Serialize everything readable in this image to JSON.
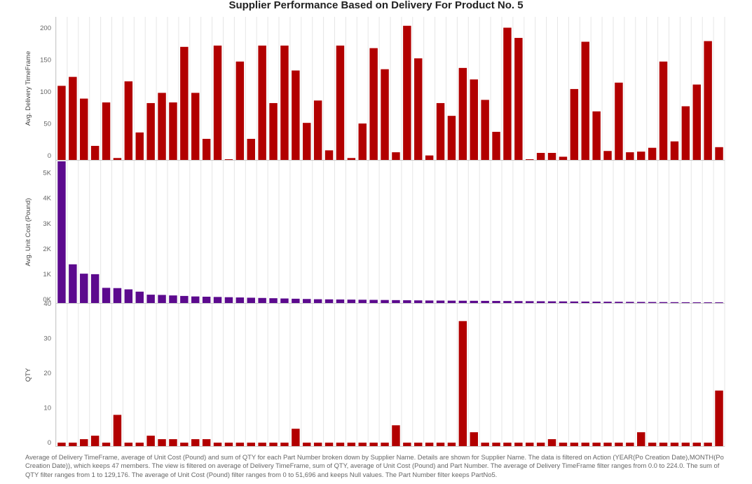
{
  "chart_data": {
    "type": "bar",
    "title": "Supplier Performance Based on Delivery For Product No. 5",
    "xlabel": "",
    "colors": {
      "delivery": "#b20000",
      "cost": "#5c0a8e",
      "qty": "#b20000",
      "gridline": "#e6e6e6"
    },
    "panels": [
      {
        "name": "delivery",
        "ylabel": "Avg. Delivery TimeFrame",
        "ylim": [
          0,
          224
        ],
        "ticks": [
          0,
          50,
          100,
          150,
          200
        ],
        "tick_labels": [
          "0",
          "50",
          "100",
          "150",
          "200"
        ]
      },
      {
        "name": "cost",
        "ylabel": "Avg. Unit Cost (Pound)",
        "ylim": [
          0,
          5600
        ],
        "ticks": [
          0,
          1000,
          2000,
          3000,
          4000,
          5000
        ],
        "tick_labels": [
          "0K",
          "1K",
          "2K",
          "3K",
          "4K",
          "5K"
        ]
      },
      {
        "name": "qty",
        "ylabel": "QTY",
        "ylim": [
          0,
          41
        ],
        "ticks": [
          0,
          10,
          20,
          30,
          40
        ],
        "tick_labels": [
          "0",
          "10",
          "20",
          "30",
          "40"
        ]
      }
    ],
    "series": [
      {
        "name": "Avg. Delivery TimeFrame",
        "values": [
          116,
          130,
          96,
          22,
          90,
          3,
          123,
          43,
          89,
          105,
          90,
          177,
          105,
          33,
          179,
          1,
          154,
          33,
          179,
          89,
          179,
          140,
          58,
          93,
          15,
          179,
          3,
          57,
          175,
          142,
          12,
          210,
          159,
          7,
          89,
          69,
          144,
          126,
          94,
          44,
          207,
          191,
          1,
          11,
          11,
          5,
          111,
          185,
          76,
          14,
          121,
          12,
          13,
          19,
          154,
          29,
          84,
          118,
          186,
          20
        ]
      },
      {
        "name": "Avg. Unit Cost (Pound)",
        "values": [
          5600,
          1530,
          1160,
          1140,
          600,
          590,
          540,
          450,
          330,
          320,
          300,
          280,
          260,
          250,
          240,
          230,
          220,
          210,
          200,
          190,
          180,
          170,
          160,
          150,
          145,
          140,
          135,
          130,
          125,
          120,
          115,
          110,
          105,
          100,
          97,
          94,
          91,
          88,
          85,
          82,
          79,
          76,
          73,
          70,
          67,
          64,
          61,
          58,
          55,
          52,
          49,
          46,
          43,
          40,
          37,
          34,
          31,
          28,
          25,
          22
        ]
      },
      {
        "name": "QTY",
        "values": [
          1,
          1,
          2,
          3,
          1,
          9,
          1,
          1,
          3,
          2,
          2,
          1,
          2,
          2,
          1,
          1,
          1,
          1,
          1,
          1,
          1,
          5,
          1,
          1,
          1,
          1,
          1,
          1,
          1,
          1,
          6,
          1,
          1,
          1,
          1,
          1,
          36,
          4,
          1,
          1,
          1,
          1,
          1,
          1,
          2,
          1,
          1,
          1,
          1,
          1,
          1,
          1,
          4,
          1,
          1,
          1,
          1,
          1,
          1,
          16
        ]
      }
    ]
  },
  "caption": "Average of Delivery TimeFrame, average of Unit Cost (Pound) and sum of QTY for each Part Number broken down by Supplier Name.  Details are shown for Supplier Name. The data is filtered on Action (YEAR(Po Creation Date),MONTH(Po Creation Date)), which keeps 47 members. The view is filtered on average of Delivery TimeFrame, sum of QTY, average of Unit Cost (Pound) and Part Number. The average of Delivery TimeFrame filter ranges from 0.0 to 224.0. The sum of QTY filter ranges from 1 to 129,176. The average of Unit Cost (Pound) filter ranges from 0 to 51,696 and keeps Null values. The Part Number filter keeps PartNo5."
}
